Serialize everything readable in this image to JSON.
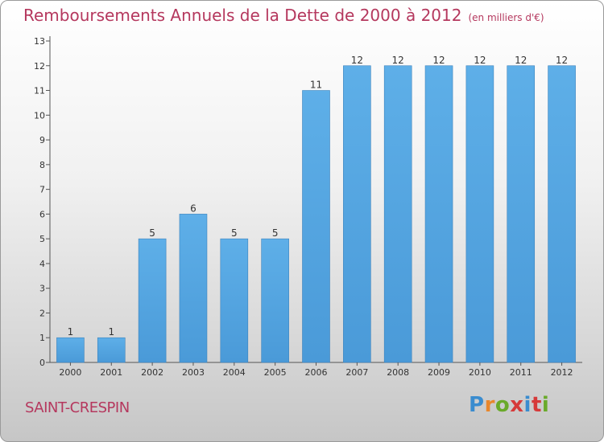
{
  "chart_data": {
    "type": "bar",
    "title": "Remboursements Annuels de la Dette de 2000 à 2012",
    "unit_note": "(en milliers d'€)",
    "categories": [
      "2000",
      "2001",
      "2002",
      "2003",
      "2004",
      "2005",
      "2006",
      "2007",
      "2008",
      "2009",
      "2010",
      "2011",
      "2012"
    ],
    "values": [
      1,
      1,
      5,
      6,
      5,
      5,
      11,
      12,
      12,
      12,
      12,
      12,
      12
    ],
    "ylim": [
      0,
      13
    ],
    "yticks": [
      "0",
      "1",
      "2",
      "3",
      "4",
      "5",
      "6",
      "7",
      "8",
      "9",
      "10",
      "11",
      "12",
      "13"
    ],
    "grid": false,
    "bar_color": "#4a9ad8"
  },
  "place_name": "SAINT-CRESPIN",
  "logo": {
    "text": "Proxiti",
    "letter_colors": [
      "#3a8ccf",
      "#e8872c",
      "#6aaa2a",
      "#d63a3a",
      "#3a8ccf",
      "#d63a3a",
      "#6aaa2a"
    ]
  }
}
